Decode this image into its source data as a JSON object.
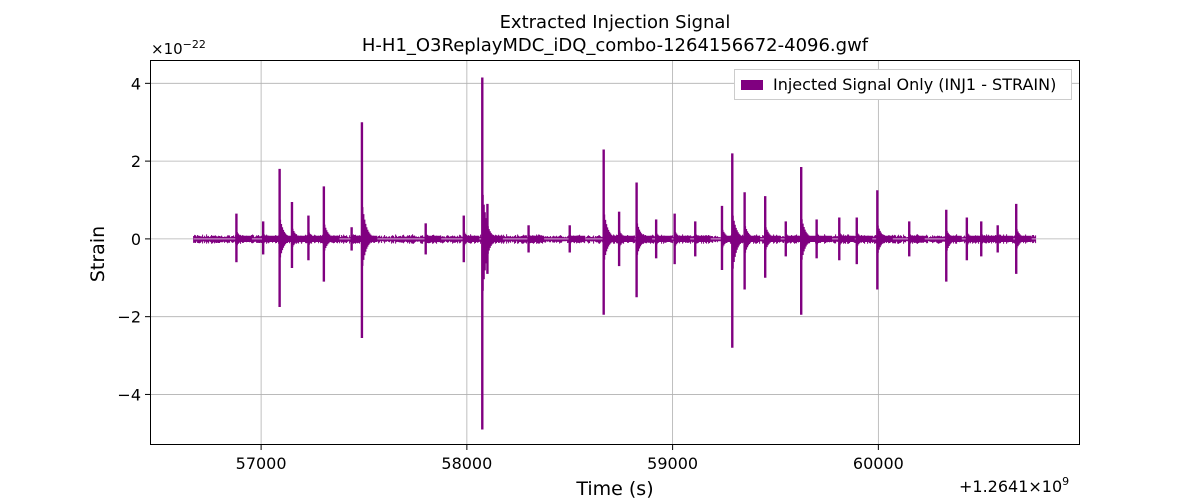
{
  "chart_data": {
    "type": "line",
    "title_line1": "Extracted Injection Signal",
    "title_line2": "H-H1_O3ReplayMDC_iDQ_combo-1264156672-4096.gwf",
    "xlabel": "Time (s)",
    "ylabel": "Strain",
    "x_offset_label": "+1.2641×10",
    "x_offset_exponent": "9",
    "y_multiplier_label": "×10",
    "y_multiplier_exponent": "−22",
    "xlim": [
      56460,
      60980
    ],
    "ylim": [
      -5.3,
      4.6
    ],
    "xticks": [
      57000,
      58000,
      59000,
      60000
    ],
    "xtick_labels": [
      "57000",
      "58000",
      "59000",
      "60000"
    ],
    "yticks": [
      4,
      2,
      0,
      -2,
      -4
    ],
    "ytick_labels": [
      "4",
      "2",
      "0",
      "−2",
      "−4"
    ],
    "grid": true,
    "legend_position": "top-right",
    "color": "#800080",
    "series": [
      {
        "name": "Injected Signal Only (INJ1 - STRAIN)",
        "x_range": [
          56672,
          60768
        ],
        "baseline_amplitude": 0.08,
        "spikes": [
          {
            "x": 56880,
            "max": 0.65,
            "min": -0.6
          },
          {
            "x": 57010,
            "max": 0.45,
            "min": -0.4
          },
          {
            "x": 57090,
            "max": 1.8,
            "min": -1.75
          },
          {
            "x": 57150,
            "max": 0.95,
            "min": -0.75
          },
          {
            "x": 57230,
            "max": 0.6,
            "min": -0.55
          },
          {
            "x": 57305,
            "max": 1.35,
            "min": -1.1
          },
          {
            "x": 57440,
            "max": 0.3,
            "min": -0.3
          },
          {
            "x": 57490,
            "max": 3.0,
            "min": -2.55
          },
          {
            "x": 57800,
            "max": 0.4,
            "min": -0.4
          },
          {
            "x": 57985,
            "max": 0.6,
            "min": -0.6
          },
          {
            "x": 58075,
            "max": 4.15,
            "min": -4.9
          },
          {
            "x": 58100,
            "max": 0.9,
            "min": -0.9
          },
          {
            "x": 58300,
            "max": 0.35,
            "min": -0.35
          },
          {
            "x": 58500,
            "max": 0.35,
            "min": -0.35
          },
          {
            "x": 58665,
            "max": 2.3,
            "min": -1.95
          },
          {
            "x": 58740,
            "max": 0.7,
            "min": -0.7
          },
          {
            "x": 58825,
            "max": 1.45,
            "min": -1.5
          },
          {
            "x": 58920,
            "max": 0.5,
            "min": -0.5
          },
          {
            "x": 59010,
            "max": 0.65,
            "min": -0.65
          },
          {
            "x": 59110,
            "max": 0.45,
            "min": -0.45
          },
          {
            "x": 59240,
            "max": 0.85,
            "min": -0.8
          },
          {
            "x": 59290,
            "max": 2.2,
            "min": -2.8
          },
          {
            "x": 59350,
            "max": 1.2,
            "min": -1.3
          },
          {
            "x": 59450,
            "max": 1.1,
            "min": -1.0
          },
          {
            "x": 59550,
            "max": 0.45,
            "min": -0.45
          },
          {
            "x": 59625,
            "max": 1.85,
            "min": -1.95
          },
          {
            "x": 59700,
            "max": 0.5,
            "min": -0.5
          },
          {
            "x": 59810,
            "max": 0.55,
            "min": -0.55
          },
          {
            "x": 59895,
            "max": 0.55,
            "min": -0.65
          },
          {
            "x": 59995,
            "max": 1.25,
            "min": -1.3
          },
          {
            "x": 60150,
            "max": 0.45,
            "min": -0.45
          },
          {
            "x": 60330,
            "max": 0.75,
            "min": -1.1
          },
          {
            "x": 60430,
            "max": 0.55,
            "min": -0.55
          },
          {
            "x": 60500,
            "max": 0.45,
            "min": -0.45
          },
          {
            "x": 60580,
            "max": 0.35,
            "min": -0.35
          },
          {
            "x": 60670,
            "max": 0.9,
            "min": -0.9
          }
        ]
      }
    ]
  }
}
